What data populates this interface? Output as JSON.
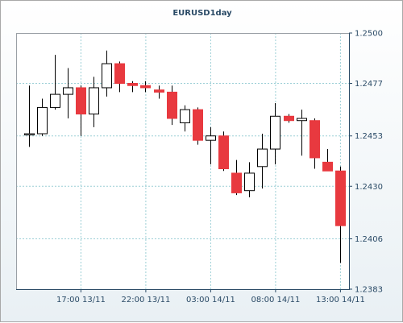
{
  "chart_data": {
    "type": "candlestick",
    "title": "EURUSD1day",
    "ylim": [
      1.2383,
      1.25
    ],
    "y_ticks": [
      "1.2500",
      "1.2477",
      "1.2453",
      "1.2430",
      "1.2406",
      "1.2383"
    ],
    "x_ticks": [
      {
        "label": "17:00 13/11",
        "index": 4
      },
      {
        "label": "22:00 13/11",
        "index": 9
      },
      {
        "label": "03:00 14/11",
        "index": 14
      },
      {
        "label": "08:00 14/11",
        "index": 19
      },
      {
        "label": "13:00 14/11",
        "index": 24
      }
    ],
    "grid": true,
    "bull_color": "#ffffff",
    "bear_color": "#e8393f",
    "candles": [
      {
        "open": 1.2454,
        "high": 1.2476,
        "low": 1.2448,
        "close": 1.2454
      },
      {
        "open": 1.2454,
        "high": 1.247,
        "low": 1.2453,
        "close": 1.2466
      },
      {
        "open": 1.2466,
        "high": 1.249,
        "low": 1.2465,
        "close": 1.2472
      },
      {
        "open": 1.2472,
        "high": 1.2484,
        "low": 1.2461,
        "close": 1.2475
      },
      {
        "open": 1.2475,
        "high": 1.2476,
        "low": 1.2453,
        "close": 1.2463
      },
      {
        "open": 1.2463,
        "high": 1.248,
        "low": 1.2457,
        "close": 1.2475
      },
      {
        "open": 1.2475,
        "high": 1.2492,
        "low": 1.2471,
        "close": 1.2486
      },
      {
        "open": 1.2486,
        "high": 1.2487,
        "low": 1.2473,
        "close": 1.2477
      },
      {
        "open": 1.2477,
        "high": 1.2478,
        "low": 1.2473,
        "close": 1.2476
      },
      {
        "open": 1.2476,
        "high": 1.2478,
        "low": 1.2473,
        "close": 1.2475
      },
      {
        "open": 1.2474,
        "high": 1.2476,
        "low": 1.247,
        "close": 1.2473
      },
      {
        "open": 1.2473,
        "high": 1.2476,
        "low": 1.2458,
        "close": 1.2461
      },
      {
        "open": 1.2459,
        "high": 1.2467,
        "low": 1.2455,
        "close": 1.2465
      },
      {
        "open": 1.2465,
        "high": 1.2466,
        "low": 1.2449,
        "close": 1.2451
      },
      {
        "open": 1.2451,
        "high": 1.2457,
        "low": 1.244,
        "close": 1.2453
      },
      {
        "open": 1.2453,
        "high": 1.2455,
        "low": 1.2437,
        "close": 1.2438
      },
      {
        "open": 1.2436,
        "high": 1.2442,
        "low": 1.2426,
        "close": 1.2427
      },
      {
        "open": 1.2428,
        "high": 1.2441,
        "low": 1.2425,
        "close": 1.2436
      },
      {
        "open": 1.2439,
        "high": 1.2454,
        "low": 1.2429,
        "close": 1.2447
      },
      {
        "open": 1.2447,
        "high": 1.2468,
        "low": 1.244,
        "close": 1.2462
      },
      {
        "open": 1.2462,
        "high": 1.2463,
        "low": 1.2459,
        "close": 1.246
      },
      {
        "open": 1.246,
        "high": 1.2465,
        "low": 1.2444,
        "close": 1.2461
      },
      {
        "open": 1.246,
        "high": 1.2461,
        "low": 1.2438,
        "close": 1.2443
      },
      {
        "open": 1.2441,
        "high": 1.2447,
        "low": 1.2437,
        "close": 1.2437
      },
      {
        "open": 1.2437,
        "high": 1.2439,
        "low": 1.2395,
        "close": 1.2412
      }
    ]
  }
}
